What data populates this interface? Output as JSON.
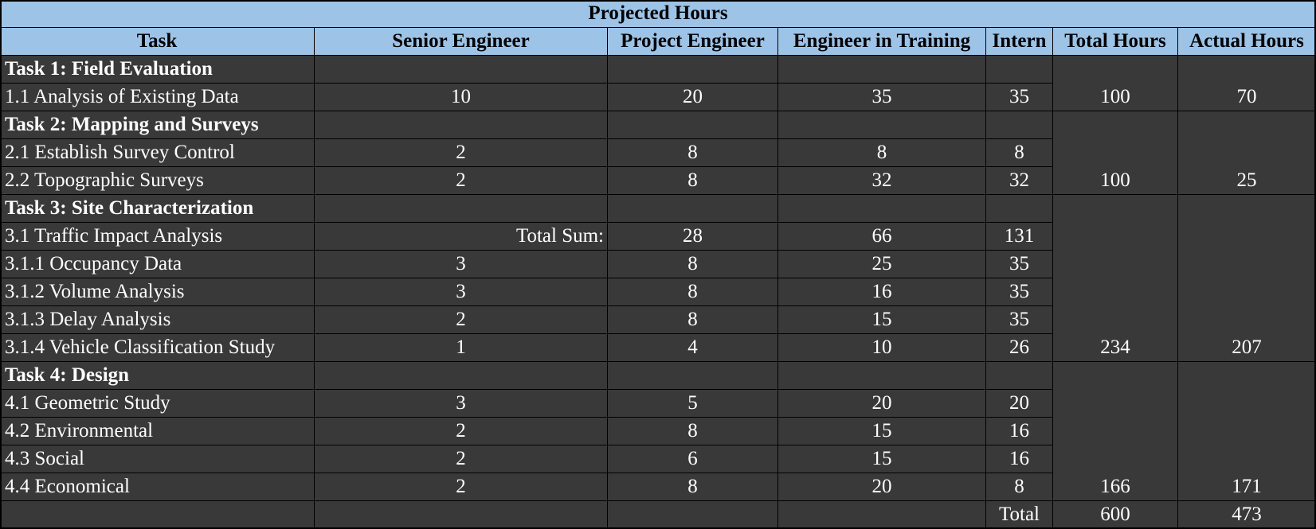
{
  "title": "Projected Hours",
  "headers": [
    "Task",
    "Senior Engineer",
    "Project Engineer",
    "Engineer in Training",
    "Intern",
    "Total Hours",
    "Actual Hours"
  ],
  "rows": [
    {
      "task": "Task 1: Field Evaluation",
      "heading": true,
      "se": "",
      "pe": "",
      "eit": "",
      "intern": ""
    },
    {
      "task": "1.1 Analysis of Existing Data",
      "heading": false,
      "se": "10",
      "pe": "20",
      "eit": "35",
      "intern": "35"
    },
    {
      "task": "Task 2: Mapping and Surveys",
      "heading": true,
      "se": "",
      "pe": "",
      "eit": "",
      "intern": ""
    },
    {
      "task": "2.1 Establish Survey Control",
      "heading": false,
      "se": "2",
      "pe": "8",
      "eit": "8",
      "intern": "8"
    },
    {
      "task": "2.2 Topographic Surveys",
      "heading": false,
      "se": "2",
      "pe": "8",
      "eit": "32",
      "intern": "32"
    },
    {
      "task": "Task 3: Site Characterization",
      "heading": true,
      "se": "",
      "pe": "",
      "eit": "",
      "intern": ""
    },
    {
      "task": "3.1 Traffic Impact Analysis",
      "heading": false,
      "se": "Total Sum:",
      "se_right": true,
      "pe": "28",
      "eit": "66",
      "intern": "131"
    },
    {
      "task": "3.1.1 Occupancy Data",
      "heading": false,
      "se": "3",
      "pe": "8",
      "eit": "25",
      "intern": "35"
    },
    {
      "task": "3.1.2 Volume Analysis",
      "heading": false,
      "se": "3",
      "pe": "8",
      "eit": "16",
      "intern": "35"
    },
    {
      "task": "3.1.3 Delay Analysis",
      "heading": false,
      "se": "2",
      "pe": "8",
      "eit": "15",
      "intern": "35"
    },
    {
      "task": "3.1.4 Vehicle Classification Study",
      "heading": false,
      "se": "1",
      "pe": "4",
      "eit": "10",
      "intern": "26"
    },
    {
      "task": "Task 4: Design",
      "heading": true,
      "se": "",
      "pe": "",
      "eit": "",
      "intern": ""
    },
    {
      "task": "4.1 Geometric Study",
      "heading": false,
      "se": "3",
      "pe": "5",
      "eit": "20",
      "intern": "20"
    },
    {
      "task": "4.2 Environmental",
      "heading": false,
      "se": "2",
      "pe": "8",
      "eit": "15",
      "intern": "16"
    },
    {
      "task": "4.3 Social",
      "heading": false,
      "se": "2",
      "pe": "6",
      "eit": "15",
      "intern": "16"
    },
    {
      "task": "4.4 Economical",
      "heading": false,
      "se": "2",
      "pe": "8",
      "eit": "20",
      "intern": "8"
    }
  ],
  "groups": [
    {
      "rows": [
        0,
        1
      ],
      "total_hours": "100",
      "actual_hours": "70"
    },
    {
      "rows": [
        2,
        4
      ],
      "total_hours": "100",
      "actual_hours": "25"
    },
    {
      "rows": [
        5,
        10
      ],
      "total_hours": "234",
      "actual_hours": "207"
    },
    {
      "rows": [
        11,
        15
      ],
      "total_hours": "166",
      "actual_hours": "171"
    }
  ],
  "footer": {
    "label": "Total",
    "total_hours": "600",
    "actual_hours": "473"
  }
}
